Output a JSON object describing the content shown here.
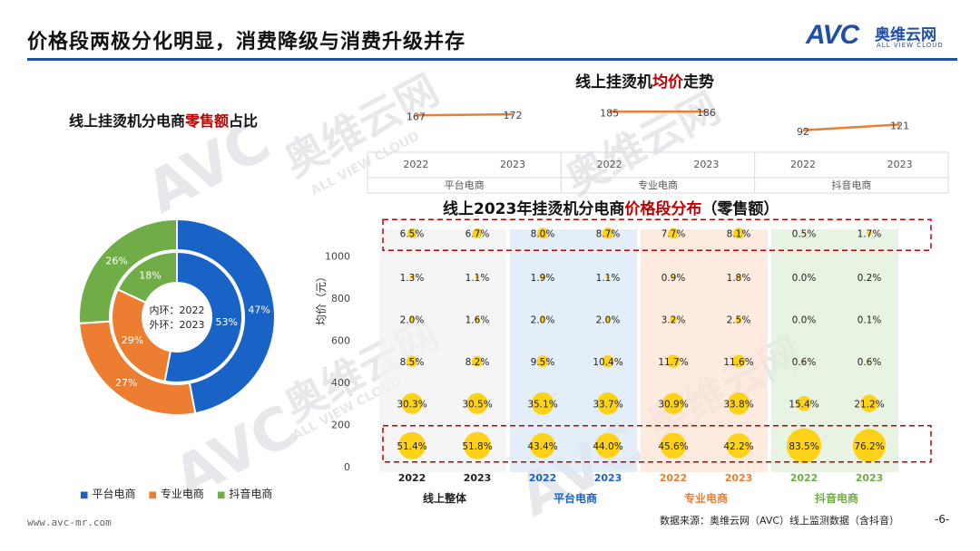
{
  "page_title": "价格段两极分化明显，消费降级与消费升级并存",
  "logo": {
    "mark": "AVC",
    "cn": "奥维云网",
    "en": "ALL VIEW CLOUD"
  },
  "watermark": {
    "cn": "奥维云网",
    "en": "ALL VIEW CLOUD",
    "mark": "AVC"
  },
  "footer": {
    "url": "www.avc-mr.com",
    "source": "数据来源：奥维云网（AVC）线上监测数据（含抖音）",
    "page": "-6-"
  },
  "colors": {
    "platform": "#1a63c6",
    "professional": "#ed7d31",
    "douyin": "#70ad47",
    "bubble": "#ffd21a",
    "accent_red": "#c00000",
    "title_blue": "#1f4fa8"
  },
  "donut": {
    "title_pre": "线上挂烫机分电商",
    "title_red": "零售额",
    "title_post": "占比",
    "center_inner": "内环：2022",
    "center_outer": "外环：2023"
  },
  "avg_price": {
    "title_pre": "线上挂烫机",
    "title_red": "均价",
    "title_post": "走势"
  },
  "bubble": {
    "title_pre": "线上2023年挂烫机分电商",
    "title_red": "价格段分布",
    "title_post": "（零售额）",
    "ylabel": "均价（元）"
  },
  "chart_data": [
    {
      "type": "pie",
      "title": "线上挂烫机分电商零售额占比",
      "categories": [
        "平台电商",
        "专业电商",
        "抖音电商"
      ],
      "series": [
        {
          "name": "2022",
          "values": [
            53,
            29,
            18
          ]
        },
        {
          "name": "2023",
          "values": [
            47,
            27,
            26
          ]
        }
      ],
      "value_labels": {
        "2022": [
          "53%",
          "29%",
          "18%"
        ],
        "2023": [
          "47%",
          "27%",
          "26%"
        ]
      },
      "legend_position": "bottom"
    },
    {
      "type": "line",
      "title": "线上挂烫机均价走势",
      "groups": [
        "平台电商",
        "专业电商",
        "抖音电商"
      ],
      "x": [
        "2022",
        "2023"
      ],
      "series": [
        {
          "name": "平台电商",
          "values": [
            167,
            172
          ]
        },
        {
          "name": "专业电商",
          "values": [
            185,
            186
          ]
        },
        {
          "name": "抖音电商",
          "values": [
            92,
            121
          ]
        }
      ]
    },
    {
      "type": "scatter",
      "title": "线上2023年挂烫机分电商价格段分布（零售额）",
      "ylabel": "均价（元）",
      "yticks": [
        0,
        200,
        400,
        600,
        800,
        1000
      ],
      "groups": [
        "线上整体",
        "平台电商",
        "专业电商",
        "抖音电商"
      ],
      "years": [
        "2022",
        "2023"
      ],
      "price_levels": [
        100,
        300,
        500,
        700,
        900,
        1100
      ],
      "columns": [
        {
          "group": "线上整体",
          "year": "2022",
          "values": [
            "51.4%",
            "30.3%",
            "8.5%",
            "2.0%",
            "1.3%",
            "6.5%"
          ]
        },
        {
          "group": "线上整体",
          "year": "2023",
          "values": [
            "51.8%",
            "30.5%",
            "8.2%",
            "1.6%",
            "1.1%",
            "6.7%"
          ]
        },
        {
          "group": "平台电商",
          "year": "2022",
          "values": [
            "43.4%",
            "35.1%",
            "9.5%",
            "2.0%",
            "1.9%",
            "8.0%"
          ]
        },
        {
          "group": "平台电商",
          "year": "2023",
          "values": [
            "44.0%",
            "33.7%",
            "10.4%",
            "2.0%",
            "1.1%",
            "8.7%"
          ]
        },
        {
          "group": "专业电商",
          "year": "2022",
          "values": [
            "45.6%",
            "30.9%",
            "11.7%",
            "3.2%",
            "0.9%",
            "7.7%"
          ]
        },
        {
          "group": "专业电商",
          "year": "2023",
          "values": [
            "42.2%",
            "33.8%",
            "11.6%",
            "2.5%",
            "1.8%",
            "8.1%"
          ]
        },
        {
          "group": "抖音电商",
          "year": "2022",
          "values": [
            "83.5%",
            "15.4%",
            "0.6%",
            "0.0%",
            "0.0%",
            "0.5%"
          ]
        },
        {
          "group": "抖音电商",
          "year": "2023",
          "values": [
            "76.2%",
            "21.2%",
            "0.6%",
            "0.1%",
            "0.2%",
            "1.7%"
          ]
        }
      ]
    }
  ]
}
